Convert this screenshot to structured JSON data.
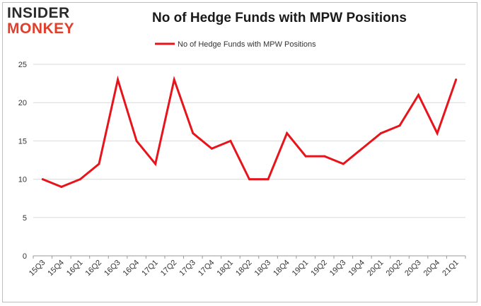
{
  "logo": {
    "line1": "INSIDER",
    "line2": "MONKEY"
  },
  "colors": {
    "series": "#e8141b",
    "grid": "#d9d9d9",
    "axis": "#999999"
  },
  "chart_data": {
    "type": "line",
    "title": "No of Hedge Funds with MPW Positions",
    "xlabel": "",
    "ylabel": "",
    "ylim": [
      0,
      25
    ],
    "yticks": [
      0,
      5,
      10,
      15,
      20,
      25
    ],
    "grid": true,
    "legend": "top-center",
    "categories": [
      "15Q3",
      "15Q4",
      "16Q1",
      "16Q2",
      "16Q3",
      "16Q4",
      "17Q1",
      "17Q2",
      "17Q3",
      "17Q4",
      "18Q1",
      "18Q2",
      "18Q3",
      "18Q4",
      "19Q1",
      "19Q2",
      "19Q3",
      "19Q4",
      "20Q1",
      "20Q2",
      "20Q3",
      "20Q4",
      "21Q1"
    ],
    "series": [
      {
        "name": "No of Hedge Funds with MPW Positions",
        "values": [
          10,
          9,
          10,
          12,
          23,
          15,
          12,
          23,
          16,
          14,
          15,
          10,
          10,
          16,
          13,
          13,
          12,
          14,
          16,
          17,
          21,
          16,
          23
        ]
      }
    ]
  }
}
